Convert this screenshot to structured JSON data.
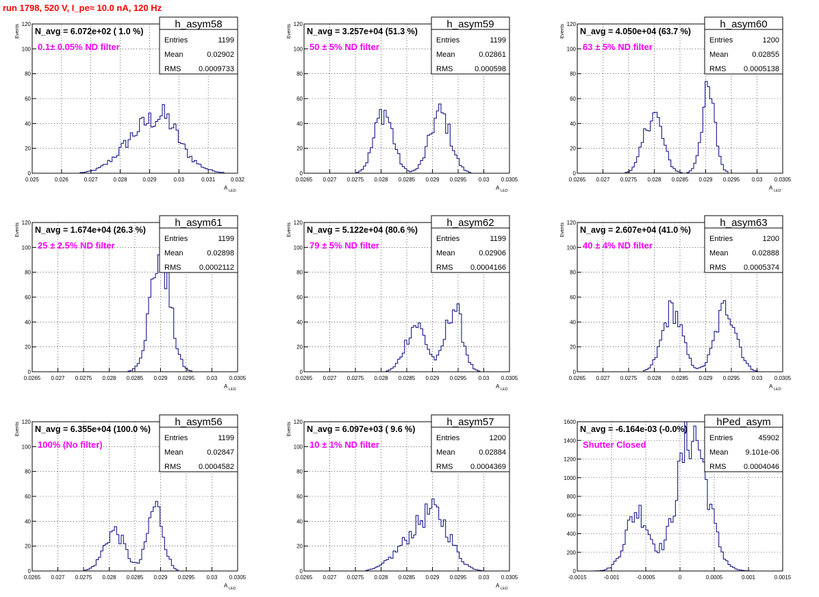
{
  "header": {
    "title": "run 1798,   520 V, I_pe≈ 10.0 nA, 120 Hz",
    "title_color": "#ff0000"
  },
  "colors": {
    "hist_line": "#000080",
    "annotation": "#ff00ff",
    "frame": "#000000",
    "grid": "#000000"
  },
  "chart_data": [
    {
      "type": "histogram",
      "name": "h_asym58",
      "nav_label": "N_avg = 6.072e+02 ( 1.0 %)",
      "filter_label": "0.1± 0.05% ND filter",
      "stats": {
        "entries_label": "Entries",
        "entries": "1199",
        "mean_label": "Mean",
        "mean": "0.02902",
        "rms_label": "RMS",
        "rms": "0.0009733"
      },
      "xlabel": "A",
      "xlabel_sub": "LED",
      "ylabel": "Events",
      "xlim": [
        0.025,
        0.032
      ],
      "ylim": [
        0,
        120
      ],
      "xticks": [
        "0.025",
        "0.026",
        "0.027",
        "0.028",
        "0.029",
        "0.03",
        "0.031",
        "0.032"
      ],
      "yticks": [
        "0",
        "20",
        "40",
        "60",
        "80",
        "100",
        "120"
      ],
      "grid": true,
      "peaks": [
        {
          "center": 0.0292,
          "sigma": 0.0008,
          "height": 40
        },
        {
          "center": 0.0296,
          "sigma": 0.0003,
          "height": 8
        },
        {
          "center": 0.0282,
          "sigma": 0.0006,
          "height": 6
        }
      ]
    },
    {
      "type": "histogram",
      "name": "h_asym59",
      "nav_label": "N_avg = 3.257e+04 (51.3 %)",
      "filter_label": "50 ± 5% ND filter",
      "stats": {
        "entries_label": "Entries",
        "entries": "1199",
        "mean_label": "Mean",
        "mean": "0.02861",
        "rms_label": "RMS",
        "rms": "0.000598"
      },
      "xlabel": "A",
      "xlabel_sub": "LED",
      "ylabel": "Events",
      "xlim": [
        0.0265,
        0.0305
      ],
      "ylim": [
        0,
        120
      ],
      "xticks": [
        "0.0265",
        "0.027",
        "0.0275",
        "0.028",
        "0.0285",
        "0.029",
        "0.0295",
        "0.03",
        "0.0305"
      ],
      "yticks": [
        "0",
        "20",
        "40",
        "60",
        "80",
        "100",
        "120"
      ],
      "grid": true,
      "peaks": [
        {
          "center": 0.02805,
          "sigma": 0.00018,
          "height": 50
        },
        {
          "center": 0.02915,
          "sigma": 0.0002,
          "height": 48
        }
      ]
    },
    {
      "type": "histogram",
      "name": "h_asym60",
      "nav_label": "N_avg = 4.050e+04 (63.7 %)",
      "filter_label": "63 ± 5% ND filter",
      "stats": {
        "entries_label": "Entries",
        "entries": "1200",
        "mean_label": "Mean",
        "mean": "0.02855",
        "rms_label": "RMS",
        "rms": "0.0005138"
      },
      "xlabel": "A",
      "xlabel_sub": "LED",
      "ylabel": "Events",
      "xlim": [
        0.0265,
        0.0305
      ],
      "ylim": [
        0,
        120
      ],
      "xticks": [
        "0.0265",
        "0.027",
        "0.0275",
        "0.028",
        "0.0285",
        "0.029",
        "0.0295",
        "0.03",
        "0.0305"
      ],
      "yticks": [
        "0",
        "20",
        "40",
        "60",
        "80",
        "100",
        "120"
      ],
      "grid": true,
      "peaks": [
        {
          "center": 0.02798,
          "sigma": 0.00018,
          "height": 48
        },
        {
          "center": 0.02905,
          "sigma": 0.00013,
          "height": 64
        }
      ]
    },
    {
      "type": "histogram",
      "name": "h_asym61",
      "nav_label": "N_avg = 1.674e+04 (26.3 %)",
      "filter_label": "25 ± 2.5% ND filter",
      "stats": {
        "entries_label": "Entries",
        "entries": "1199",
        "mean_label": "Mean",
        "mean": "0.02898",
        "rms_label": "RMS",
        "rms": "0.0002112"
      },
      "xlabel": "A",
      "xlabel_sub": "LED",
      "ylabel": "Events",
      "xlim": [
        0.0265,
        0.0305
      ],
      "ylim": [
        0,
        120
      ],
      "xticks": [
        "0.0265",
        "0.027",
        "0.0275",
        "0.028",
        "0.0285",
        "0.029",
        "0.0295",
        "0.03",
        "0.0305"
      ],
      "yticks": [
        "0",
        "20",
        "40",
        "60",
        "80",
        "100",
        "120"
      ],
      "grid": true,
      "peaks": [
        {
          "center": 0.02899,
          "sigma": 0.00019,
          "height": 96
        }
      ]
    },
    {
      "type": "histogram",
      "name": "h_asym62",
      "nav_label": "N_avg = 5.122e+04 (80.6 %)",
      "filter_label": "79 ± 5% ND filter",
      "stats": {
        "entries_label": "Entries",
        "entries": "1199",
        "mean_label": "Mean",
        "mean": "0.02906",
        "rms_label": "RMS",
        "rms": "0.0004166"
      },
      "xlabel": "A",
      "xlabel_sub": "LED",
      "ylabel": "Events",
      "xlim": [
        0.0265,
        0.0305
      ],
      "ylim": [
        0,
        120
      ],
      "xticks": [
        "0.0265",
        "0.027",
        "0.0275",
        "0.028",
        "0.0285",
        "0.029",
        "0.0295",
        "0.03",
        "0.0305"
      ],
      "yticks": [
        "0",
        "20",
        "40",
        "60",
        "80",
        "100",
        "120"
      ],
      "grid": true,
      "peaks": [
        {
          "center": 0.02868,
          "sigma": 0.0002,
          "height": 38
        },
        {
          "center": 0.02942,
          "sigma": 0.00016,
          "height": 52
        }
      ]
    },
    {
      "type": "histogram",
      "name": "h_asym63",
      "nav_label": "N_avg = 2.607e+04 (41.0 %)",
      "filter_label": "40 ± 4% ND filter",
      "stats": {
        "entries_label": "Entries",
        "entries": "1200",
        "mean_label": "Mean",
        "mean": "0.02888",
        "rms_label": "RMS",
        "rms": "0.0005374"
      },
      "xlabel": "A",
      "xlabel_sub": "LED",
      "ylabel": "Events",
      "xlim": [
        0.0265,
        0.0305
      ],
      "ylim": [
        0,
        120
      ],
      "xticks": [
        "0.0265",
        "0.027",
        "0.0275",
        "0.028",
        "0.0285",
        "0.029",
        "0.0295",
        "0.03",
        "0.0305"
      ],
      "yticks": [
        "0",
        "20",
        "40",
        "60",
        "80",
        "100",
        "120"
      ],
      "grid": true,
      "peaks": [
        {
          "center": 0.02835,
          "sigma": 0.00019,
          "height": 50
        },
        {
          "center": 0.0294,
          "sigma": 0.0002,
          "height": 52
        }
      ]
    },
    {
      "type": "histogram",
      "name": "h_asym56",
      "nav_label": "N_avg = 6.355e+04 (100.0 %)",
      "filter_label": "100% (No filter)",
      "stats": {
        "entries_label": "Entries",
        "entries": "1199",
        "mean_label": "Mean",
        "mean": "0.02847",
        "rms_label": "RMS",
        "rms": "0.0004582"
      },
      "xlabel": "A",
      "xlabel_sub": "LED",
      "ylabel": "Events",
      "xlim": [
        0.0265,
        0.0305
      ],
      "ylim": [
        0,
        120
      ],
      "xticks": [
        "0.0265",
        "0.027",
        "0.0275",
        "0.028",
        "0.0285",
        "0.029",
        "0.0295",
        "0.03",
        "0.0305"
      ],
      "yticks": [
        "0",
        "20",
        "40",
        "60",
        "80",
        "100",
        "120"
      ],
      "grid": true,
      "peaks": [
        {
          "center": 0.0281,
          "sigma": 0.0002,
          "height": 32
        },
        {
          "center": 0.0289,
          "sigma": 0.00015,
          "height": 52
        }
      ]
    },
    {
      "type": "histogram",
      "name": "h_asym57",
      "nav_label": "N_avg = 6.097e+03 ( 9.6 %)",
      "filter_label": "10 ± 1% ND filter",
      "stats": {
        "entries_label": "Entries",
        "entries": "1200",
        "mean_label": "Mean",
        "mean": "0.02884",
        "rms_label": "RMS",
        "rms": "0.0004369"
      },
      "xlabel": "A",
      "xlabel_sub": "LED",
      "ylabel": "Events",
      "xlim": [
        0.0265,
        0.0305
      ],
      "ylim": [
        0,
        120
      ],
      "xticks": [
        "0.0265",
        "0.027",
        "0.0275",
        "0.028",
        "0.0285",
        "0.029",
        "0.0295",
        "0.03",
        "0.0305"
      ],
      "yticks": [
        "0",
        "20",
        "40",
        "60",
        "80",
        "100",
        "120"
      ],
      "grid": true,
      "peaks": [
        {
          "center": 0.02905,
          "sigma": 0.0003,
          "height": 44
        },
        {
          "center": 0.0285,
          "sigma": 0.0003,
          "height": 18
        }
      ]
    },
    {
      "type": "histogram",
      "name": "hPed_asym",
      "nav_label": "N_avg = -6.164e-03 (-0.0%)",
      "filter_label": "Shutter Closed",
      "stats": {
        "entries_label": "Entries",
        "entries": "45902",
        "mean_label": "Mean",
        "mean": "9.101e-06",
        "rms_label": "RMS",
        "rms": "0.0004046"
      },
      "xlabel": "",
      "xlabel_sub": "",
      "ylabel": "",
      "xlim": [
        -0.0015,
        0.0015
      ],
      "ylim": [
        0,
        1600
      ],
      "xticks": [
        "-0.0015",
        "-0.001",
        "-0.0005",
        "0",
        "0.0005",
        "0.001",
        "0.0015"
      ],
      "yticks": [
        "0",
        "200",
        "400",
        "600",
        "800",
        "1000",
        "1200",
        "1400",
        "1600"
      ],
      "grid": true,
      "peaks": [
        {
          "center": -0.00062,
          "sigma": 0.00017,
          "height": 640
        },
        {
          "center": 0.00018,
          "sigma": 0.00022,
          "height": 1480
        }
      ]
    }
  ]
}
